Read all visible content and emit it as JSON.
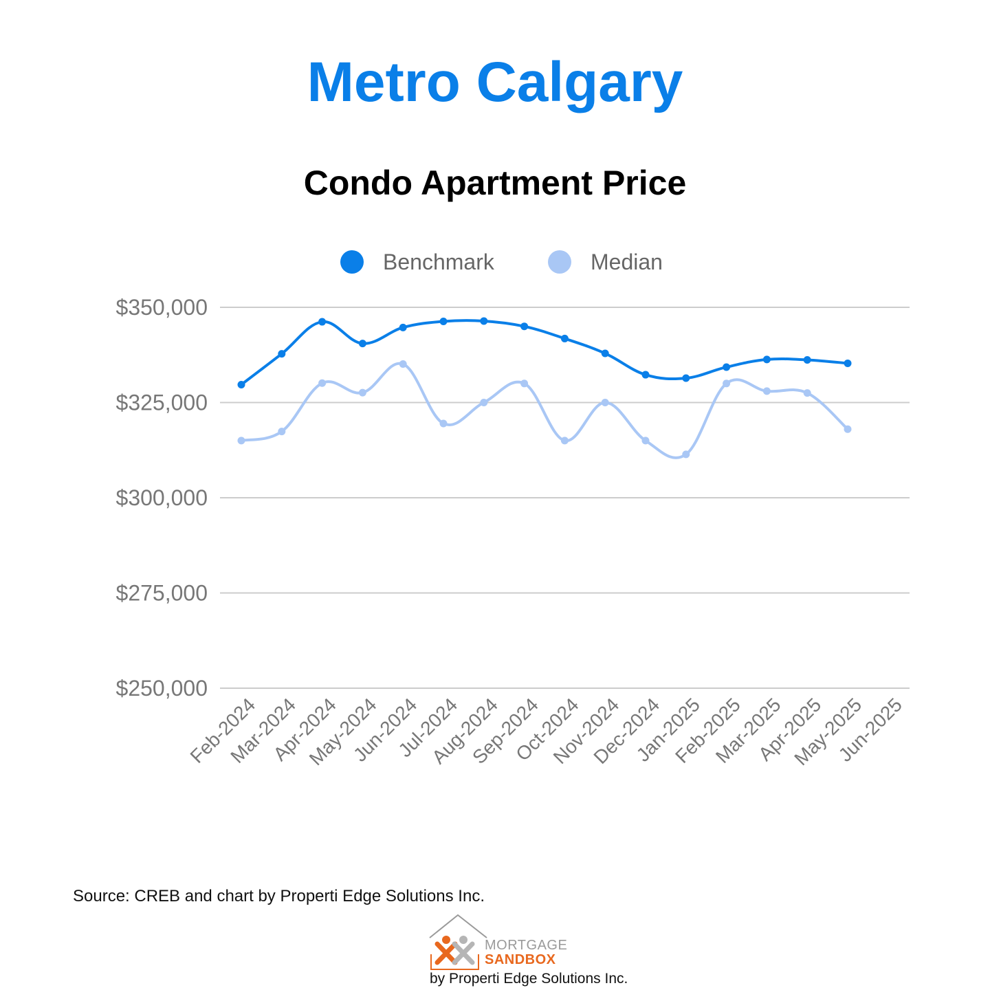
{
  "header": {
    "title": "Metro Calgary",
    "chart_title": "Condo Apartment Price"
  },
  "colors": {
    "title": "#0a7fe8",
    "benchmark": "#0a7fe8",
    "median": "#a9c7f5",
    "grid": "#cccccc",
    "axis_text": "#777777",
    "logo_orange": "#e8681e",
    "logo_gray": "#9a9a9a"
  },
  "chart_data": {
    "type": "line",
    "title": "Condo Apartment Price",
    "categories": [
      "Feb-2024",
      "Mar-2024",
      "Apr-2024",
      "May-2024",
      "Jun-2024",
      "Jul-2024",
      "Aug-2024",
      "Sep-2024",
      "Oct-2024",
      "Nov-2024",
      "Dec-2024",
      "Jan-2025",
      "Feb-2025",
      "Mar-2025",
      "Apr-2025",
      "May-2025",
      "Jun-2025"
    ],
    "series": [
      {
        "name": "Benchmark",
        "color": "#0a7fe8",
        "values": [
          329700,
          337800,
          346200,
          340500,
          344700,
          346300,
          346400,
          345000,
          341800,
          337900,
          332300,
          331400,
          334300,
          336300,
          336200,
          335300,
          null
        ]
      },
      {
        "name": "Median",
        "color": "#a9c7f5",
        "values": [
          315000,
          317400,
          330100,
          327600,
          335100,
          319500,
          325000,
          330000,
          315000,
          325000,
          315000,
          311400,
          330000,
          328000,
          327500,
          318000,
          null
        ]
      }
    ],
    "ylim": [
      250000,
      350000
    ],
    "yticks": [
      350000,
      325000,
      300000,
      275000,
      250000
    ],
    "ytick_labels": [
      "$350,000",
      "$325,000",
      "$300,000",
      "$275,000",
      "$250,000"
    ],
    "xlabel": "",
    "ylabel": "",
    "legend_position": "top-center",
    "grid": true
  },
  "footer": {
    "source": "Source: CREB and chart by Properti Edge Solutions Inc."
  },
  "logo": {
    "line1": "MORTGAGE",
    "line2": "SANDBOX",
    "tagline": "by Properti Edge Solutions Inc."
  }
}
